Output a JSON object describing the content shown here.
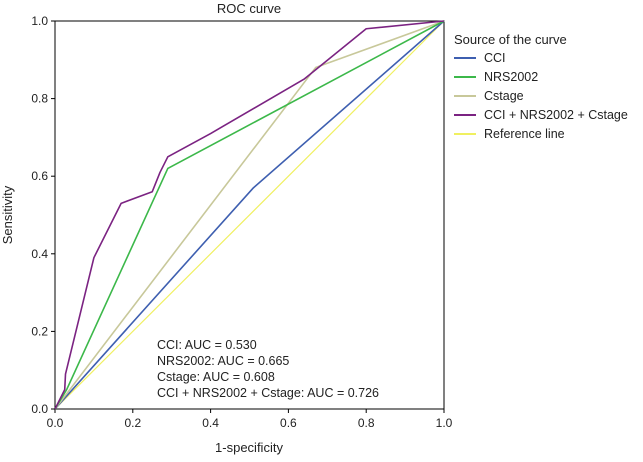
{
  "chart_data": {
    "type": "line",
    "title": "ROC curve",
    "xlabel": "1-specificity",
    "ylabel": "Sensitivity",
    "xlim": [
      0,
      1
    ],
    "ylim": [
      0,
      1
    ],
    "xticks": [
      "0.0",
      "0.2",
      "0.4",
      "0.6",
      "0.8",
      "1.0"
    ],
    "yticks": [
      "0.0",
      "0.2",
      "0.4",
      "0.6",
      "0.8",
      "1.0"
    ],
    "grid": false,
    "legend": {
      "title": "Source of the curve",
      "placement": "right"
    },
    "series": [
      {
        "name": "CCI",
        "color": "#3e5fb0",
        "points": [
          [
            0,
            0
          ],
          [
            0.51,
            0.57
          ],
          [
            1,
            1
          ]
        ]
      },
      {
        "name": "NRS2002",
        "color": "#3cb84a",
        "points": [
          [
            0,
            0
          ],
          [
            0.03,
            0.05
          ],
          [
            0.29,
            0.62
          ],
          [
            1,
            1
          ]
        ]
      },
      {
        "name": "Cstage",
        "color": "#c8c89a",
        "points": [
          [
            0,
            0
          ],
          [
            0.67,
            0.88
          ],
          [
            1,
            1
          ]
        ]
      },
      {
        "name": "CCI + NRS2002 + Cstage",
        "color": "#7b2382",
        "points": [
          [
            0,
            0
          ],
          [
            0.025,
            0.05
          ],
          [
            0.027,
            0.09
          ],
          [
            0.1,
            0.39
          ],
          [
            0.17,
            0.53
          ],
          [
            0.25,
            0.56
          ],
          [
            0.27,
            0.61
          ],
          [
            0.29,
            0.65
          ],
          [
            0.4,
            0.71
          ],
          [
            0.64,
            0.85
          ],
          [
            0.8,
            0.98
          ],
          [
            1,
            1
          ]
        ]
      },
      {
        "name": "Reference line",
        "color": "#f0f060",
        "points": [
          [
            0,
            0
          ],
          [
            1,
            1
          ]
        ]
      }
    ],
    "annotations": [
      "CCI: AUC = 0.530",
      "NRS2002: AUC = 0.665",
      "Cstage: AUC = 0.608",
      "CCI + NRS2002 + Cstage: AUC = 0.726"
    ]
  }
}
